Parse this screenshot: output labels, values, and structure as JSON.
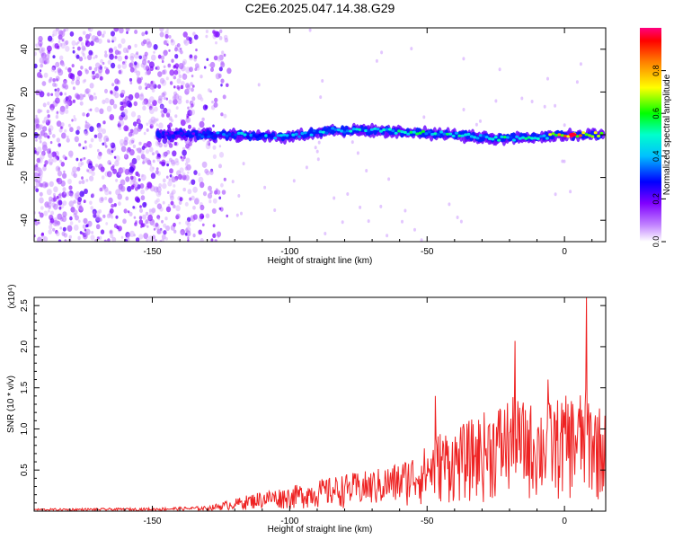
{
  "title": "C2E6.2025.047.14.38.G29",
  "chart_data": [
    {
      "type": "heatmap",
      "xlabel": "Height of straight line (km)",
      "ylabel": "Frequency (Hz)",
      "xlim": [
        -193,
        15
      ],
      "ylim": [
        -50,
        50
      ],
      "xticks": [
        -150,
        -100,
        -50,
        0
      ],
      "xtick_labels": [
        "-150",
        "-100",
        "-50",
        "0"
      ],
      "yticks": [
        -40,
        -20,
        0,
        20,
        40
      ],
      "ytick_labels": [
        "-40",
        "-20",
        "0",
        "20",
        "40"
      ],
      "colorbar": {
        "label": "Normalized spectral amplitude",
        "range": [
          0,
          1
        ],
        "ticks": [
          0.0,
          0.2,
          0.4,
          0.6,
          0.8
        ],
        "tick_labels": [
          "0.0",
          "0.2",
          "0.4",
          "0.6",
          "0.8"
        ],
        "colormap": [
          "#ffffff",
          "#8000ff",
          "#0000ff",
          "#00ffff",
          "#00ff00",
          "#ffff00",
          "#ff8000",
          "#ff0000",
          "#ff0080"
        ]
      },
      "signal_track": {
        "description_points": [
          {
            "x": -148,
            "freq": 0,
            "amp": 0.25
          },
          {
            "x": -135,
            "freq": 0,
            "amp": 0.3
          },
          {
            "x": -120,
            "freq": 0,
            "amp": 0.4
          },
          {
            "x": -100,
            "freq": -1,
            "amp": 0.45
          },
          {
            "x": -85,
            "freq": 2,
            "amp": 0.5
          },
          {
            "x": -70,
            "freq": 2,
            "amp": 0.5
          },
          {
            "x": -55,
            "freq": 1,
            "amp": 0.55
          },
          {
            "x": -40,
            "freq": 0,
            "amp": 0.5
          },
          {
            "x": -25,
            "freq": -2,
            "amp": 0.55
          },
          {
            "x": -10,
            "freq": -1,
            "amp": 0.5
          },
          {
            "x": 3,
            "freq": 0,
            "amp": 0.98
          },
          {
            "x": 14,
            "freq": 0,
            "amp": 0.7
          }
        ],
        "noise_region_x": [
          -193,
          -122
        ]
      }
    },
    {
      "type": "line",
      "xlabel": "Height of straight line (km)",
      "ylabel": "SNR (10 * v/v)",
      "yscale_label": "(x10⁴)",
      "xlim": [
        -193,
        15
      ],
      "ylim": [
        0,
        2.6
      ],
      "xticks": [
        -150,
        -100,
        -50,
        0
      ],
      "xtick_labels": [
        "-150",
        "-100",
        "-50",
        "0"
      ],
      "yticks": [
        0.5,
        1.0,
        1.5,
        2.0,
        2.5
      ],
      "ytick_labels": [
        "0.5",
        "1.0",
        "1.5",
        "2.0",
        "2.5"
      ],
      "color": "#ee2222",
      "envelope": [
        {
          "x": -193,
          "y": 0.03
        },
        {
          "x": -150,
          "y": 0.04
        },
        {
          "x": -130,
          "y": 0.06
        },
        {
          "x": -120,
          "y": 0.15
        },
        {
          "x": -110,
          "y": 0.25
        },
        {
          "x": -100,
          "y": 0.3
        },
        {
          "x": -90,
          "y": 0.38
        },
        {
          "x": -80,
          "y": 0.45
        },
        {
          "x": -70,
          "y": 0.5
        },
        {
          "x": -60,
          "y": 0.6
        },
        {
          "x": -50,
          "y": 0.8
        },
        {
          "x": -45,
          "y": 1.0
        },
        {
          "x": -40,
          "y": 1.0
        },
        {
          "x": -30,
          "y": 1.2
        },
        {
          "x": -20,
          "y": 1.4
        },
        {
          "x": -10,
          "y": 1.3
        },
        {
          "x": 0,
          "y": 1.4
        },
        {
          "x": 8,
          "y": 1.5
        },
        {
          "x": 15,
          "y": 1.2
        }
      ],
      "peaks": [
        {
          "x": -47,
          "y": 1.4
        },
        {
          "x": -18,
          "y": 2.07
        },
        {
          "x": -6,
          "y": 1.6
        },
        {
          "x": 8,
          "y": 2.6
        }
      ]
    }
  ]
}
